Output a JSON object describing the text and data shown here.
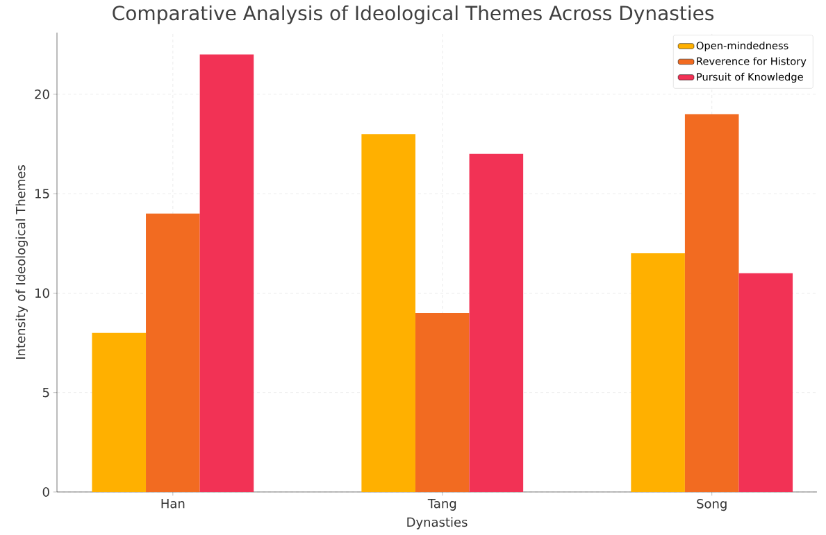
{
  "chart_data": {
    "type": "bar",
    "title": "Comparative Analysis of Ideological Themes Across Dynasties",
    "xlabel": "Dynasties",
    "ylabel": "Intensity of Ideological Themes",
    "categories": [
      "Han",
      "Tang",
      "Song"
    ],
    "series": [
      {
        "name": "Open-mindedness",
        "color": "#ffb000",
        "values": [
          8,
          18,
          12
        ]
      },
      {
        "name": "Reverence for History",
        "color": "#f26b21",
        "values": [
          14,
          9,
          19
        ]
      },
      {
        "name": "Pursuit of Knowledge",
        "color": "#f23255",
        "values": [
          22,
          17,
          11
        ]
      }
    ],
    "ylim": [
      0,
      23.1
    ],
    "yticks": [
      0,
      5,
      10,
      15,
      20
    ],
    "grid": true,
    "legend": "top right"
  }
}
